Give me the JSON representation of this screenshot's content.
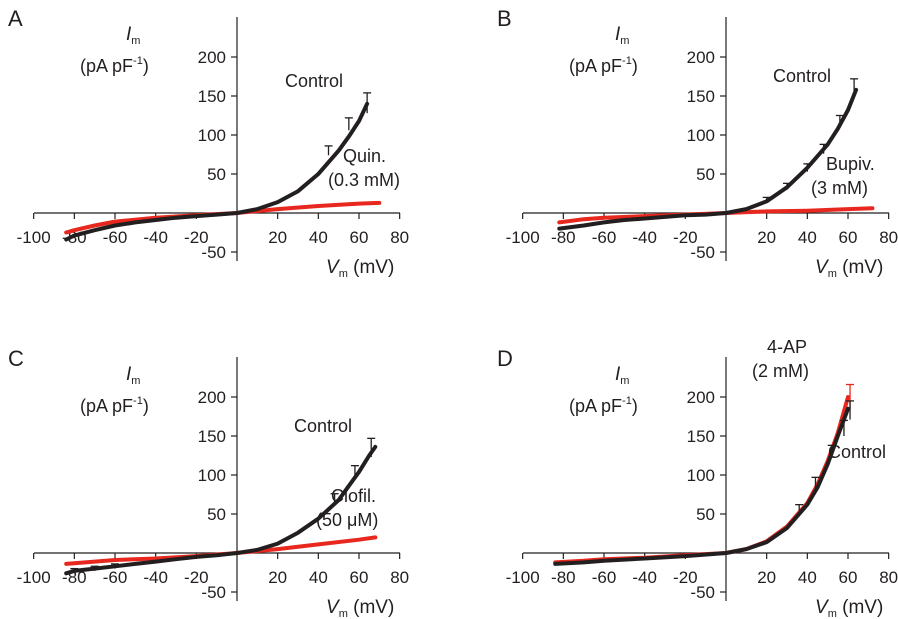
{
  "colors": {
    "control": "#231f20",
    "drug": "#e8281e",
    "axis": "#231f20"
  },
  "chart_data": [
    {
      "panel": "A",
      "type": "line",
      "ylabel_symbol": "I",
      "ylabel_sub": "m",
      "ylabel_units": "(pA pF",
      "ylabel_sup": "-1",
      "ylabel_close": ")",
      "xlabel_symbol": "V",
      "xlabel_sub": "m",
      "xlabel_units": "(mV)",
      "xlim": [
        -100,
        80
      ],
      "ylim": [
        -50,
        200
      ],
      "xticks": [
        -100,
        -80,
        -60,
        -40,
        -20,
        20,
        40,
        60,
        80
      ],
      "yticks": [
        -50,
        50,
        100,
        150,
        200
      ],
      "series": [
        {
          "name": "Control",
          "key": "control",
          "x": [
            -84,
            -80,
            -70,
            -60,
            -50,
            -40,
            -30,
            -20,
            -10,
            0,
            10,
            20,
            30,
            40,
            50,
            55,
            60,
            64
          ],
          "y": [
            -34,
            -29,
            -22,
            -16,
            -12,
            -9,
            -6,
            -4,
            -2,
            0,
            5,
            14,
            28,
            50,
            80,
            98,
            118,
            140
          ],
          "errorbars": [
            {
              "x": 45,
              "y": 80,
              "err": 6
            },
            {
              "x": 55,
              "y": 114,
              "err": 8
            },
            {
              "x": 64,
              "y": 141,
              "err": 13
            }
          ]
        },
        {
          "name": "Quin.",
          "name_line2": "(0.3 mM)",
          "key": "drug",
          "x": [
            -84,
            -80,
            -70,
            -60,
            -40,
            -20,
            0,
            20,
            40,
            60,
            70
          ],
          "y": [
            -25,
            -22,
            -16,
            -11,
            -6,
            -3,
            0,
            5,
            9,
            12,
            13
          ]
        }
      ]
    },
    {
      "panel": "B",
      "type": "line",
      "ylabel_symbol": "I",
      "ylabel_sub": "m",
      "ylabel_units": "(pA pF",
      "ylabel_sup": "-1",
      "ylabel_close": ")",
      "xlabel_symbol": "V",
      "xlabel_sub": "m",
      "xlabel_units": "(mV)",
      "xlim": [
        -100,
        80
      ],
      "ylim": [
        -50,
        200
      ],
      "xticks": [
        -100,
        -80,
        -60,
        -40,
        -20,
        20,
        40,
        60,
        80
      ],
      "yticks": [
        -50,
        50,
        100,
        150,
        200
      ],
      "series": [
        {
          "name": "Control",
          "key": "control",
          "x": [
            -82,
            -70,
            -60,
            -50,
            -40,
            -30,
            -20,
            -10,
            0,
            10,
            20,
            30,
            40,
            50,
            55,
            60,
            64
          ],
          "y": [
            -20,
            -16,
            -12,
            -9,
            -7,
            -5,
            -3,
            -2,
            0,
            5,
            15,
            33,
            58,
            88,
            108,
            132,
            158
          ],
          "errorbars": [
            {
              "x": 20,
              "y": 17,
              "err": 3
            },
            {
              "x": 30,
              "y": 34,
              "err": 4
            },
            {
              "x": 40,
              "y": 58,
              "err": 5
            },
            {
              "x": 48,
              "y": 82,
              "err": 6
            },
            {
              "x": 56,
              "y": 117,
              "err": 8
            },
            {
              "x": 63,
              "y": 160,
              "err": 12
            }
          ]
        },
        {
          "name": "Bupiv.",
          "name_line2": "(3 mM)",
          "key": "drug",
          "x": [
            -82,
            -70,
            -60,
            -40,
            -20,
            0,
            20,
            40,
            60,
            72
          ],
          "y": [
            -12,
            -8,
            -6,
            -4,
            -2,
            0,
            2,
            3,
            5,
            6
          ]
        }
      ]
    },
    {
      "panel": "C",
      "type": "line",
      "ylabel_symbol": "I",
      "ylabel_sub": "m",
      "ylabel_units": "(pA pF",
      "ylabel_sup": "-1",
      "ylabel_close": ")",
      "xlabel_symbol": "V",
      "xlabel_sub": "m",
      "xlabel_units": "(mV)",
      "xlim": [
        -100,
        80
      ],
      "ylim": [
        -50,
        200
      ],
      "xticks": [
        -100,
        -80,
        -60,
        -40,
        -20,
        20,
        40,
        60,
        80
      ],
      "yticks": [
        -50,
        50,
        100,
        150,
        200
      ],
      "series": [
        {
          "name": "Control",
          "key": "control",
          "x": [
            -84,
            -80,
            -70,
            -60,
            -50,
            -40,
            -30,
            -20,
            -10,
            0,
            10,
            20,
            30,
            40,
            50,
            55,
            60,
            65,
            68
          ],
          "y": [
            -26,
            -23,
            -20,
            -17,
            -14,
            -11,
            -8,
            -5,
            -3,
            0,
            4,
            12,
            26,
            44,
            68,
            86,
            104,
            125,
            136
          ],
          "errorbars": [
            {
              "x": -80,
              "y": -23,
              "err": 3
            },
            {
              "x": -70,
              "y": -20,
              "err": 3
            },
            {
              "x": -60,
              "y": -17,
              "err": 3
            },
            {
              "x": 48,
              "y": 70,
              "err": 6
            },
            {
              "x": 58,
              "y": 104,
              "err": 8
            },
            {
              "x": 66,
              "y": 135,
              "err": 12
            }
          ]
        },
        {
          "name": "Clofil.",
          "name_line2": "(50 μM)",
          "key": "drug",
          "x": [
            -84,
            -70,
            -60,
            -40,
            -20,
            0,
            20,
            40,
            60,
            68
          ],
          "y": [
            -14,
            -11,
            -9,
            -7,
            -4,
            0,
            5,
            11,
            17,
            20
          ]
        }
      ]
    },
    {
      "panel": "D",
      "type": "line",
      "ylabel_symbol": "I",
      "ylabel_sub": "m",
      "ylabel_units": "(pA pF",
      "ylabel_sup": "-1",
      "ylabel_close": ")",
      "xlabel_symbol": "V",
      "xlabel_sub": "m",
      "xlabel_units": "(mV)",
      "xlim": [
        -100,
        80
      ],
      "ylim": [
        -50,
        200
      ],
      "xticks": [
        -100,
        -80,
        -60,
        -40,
        -20,
        20,
        40,
        60,
        80
      ],
      "yticks": [
        -50,
        50,
        100,
        150,
        200
      ],
      "series": [
        {
          "name": "Control",
          "key": "control",
          "x": [
            -84,
            -70,
            -60,
            -40,
            -20,
            0,
            10,
            20,
            30,
            40,
            45,
            50,
            55,
            60
          ],
          "y": [
            -14,
            -12,
            -10,
            -7,
            -4,
            0,
            5,
            14,
            32,
            62,
            84,
            114,
            150,
            185
          ],
          "errorbars": [
            {
              "x": 36,
              "y": 58,
              "err": 4
            },
            {
              "x": 44,
              "y": 90,
              "err": 7
            },
            {
              "x": 52,
              "y": 130,
              "err": 8
            },
            {
              "x": 58,
              "y": 160,
              "err": 10
            },
            {
              "x": 61,
              "y": 183,
              "err": 12
            }
          ]
        },
        {
          "name": "4-AP",
          "name_line2": "(2 mM)",
          "key": "drug",
          "x": [
            -84,
            -70,
            -60,
            -40,
            -20,
            0,
            10,
            20,
            30,
            40,
            45,
            50,
            55,
            60
          ],
          "y": [
            -12,
            -10,
            -8,
            -6,
            -3,
            0,
            5,
            15,
            34,
            64,
            88,
            118,
            154,
            200
          ],
          "errorbars": [
            {
              "x": 61,
              "y": 200,
              "err": 16
            }
          ]
        }
      ]
    }
  ]
}
